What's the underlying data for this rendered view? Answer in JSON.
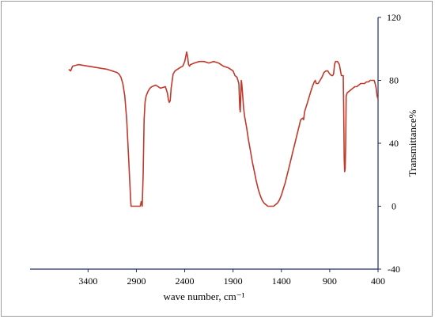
{
  "chart_data": {
    "type": "line",
    "xlabel": "wave number, cm⁻¹",
    "ylabel": "Transmittance%",
    "xlim": [
      4000,
      400
    ],
    "ylim": [
      -40,
      120
    ],
    "x_ticks": [
      3400,
      2900,
      2400,
      1900,
      1400,
      900,
      400
    ],
    "y_ticks": [
      -40,
      0,
      40,
      80,
      120
    ],
    "grid": false,
    "colors": {
      "line": "#c0392b",
      "axis": "#1f2d6b"
    },
    "series": [
      {
        "x": [
          3600,
          3580,
          3560,
          3500,
          3400,
          3300,
          3200,
          3150,
          3100,
          3080,
          3060,
          3040,
          3020,
          3000,
          2980,
          2960,
          2955,
          2950,
          2940,
          2920,
          2900,
          2880,
          2860,
          2850,
          2840,
          2830,
          2820,
          2810,
          2800,
          2780,
          2760,
          2740,
          2700,
          2650,
          2600,
          2580,
          2570,
          2560,
          2550,
          2540,
          2520,
          2500,
          2450,
          2420,
          2400,
          2390,
          2380,
          2370,
          2360,
          2350,
          2340,
          2300,
          2250,
          2200,
          2150,
          2100,
          2050,
          2000,
          1950,
          1900,
          1880,
          1860,
          1840,
          1830,
          1825,
          1820,
          1815,
          1810,
          1805,
          1800,
          1790,
          1780,
          1760,
          1740,
          1720,
          1700,
          1680,
          1660,
          1640,
          1620,
          1600,
          1580,
          1560,
          1540,
          1520,
          1500,
          1480,
          1460,
          1440,
          1420,
          1400,
          1380,
          1360,
          1340,
          1320,
          1300,
          1280,
          1260,
          1240,
          1220,
          1200,
          1180,
          1170,
          1160,
          1150,
          1140,
          1120,
          1100,
          1080,
          1060,
          1050,
          1040,
          1020,
          1000,
          980,
          960,
          940,
          920,
          900,
          880,
          870,
          860,
          850,
          840,
          820,
          800,
          780,
          760,
          755,
          750,
          745,
          740,
          735,
          730,
          720,
          700,
          680,
          660,
          640,
          620,
          600,
          580,
          560,
          540,
          520,
          500,
          480,
          460,
          440,
          430,
          420,
          410,
          400
        ],
        "y": [
          87,
          86,
          89,
          90,
          89,
          88,
          87,
          86,
          85,
          84,
          82,
          78,
          70,
          55,
          30,
          5,
          0,
          0,
          0,
          0,
          0,
          0,
          0,
          3,
          0,
          20,
          55,
          66,
          70,
          73,
          75,
          76,
          77,
          75,
          76,
          72,
          68,
          66,
          67,
          75,
          84,
          86,
          88,
          89,
          92,
          95,
          98,
          95,
          90,
          89,
          90,
          91,
          92,
          92,
          91,
          92,
          91,
          89,
          88,
          86,
          83,
          82,
          78,
          62,
          60,
          70,
          80,
          78,
          74,
          70,
          62,
          57,
          50,
          42,
          35,
          28,
          22,
          16,
          11,
          7,
          4,
          2,
          1,
          0,
          0,
          0,
          0,
          1,
          2,
          4,
          7,
          11,
          15,
          20,
          25,
          30,
          35,
          40,
          45,
          50,
          55,
          56,
          55,
          60,
          62,
          64,
          68,
          72,
          76,
          79,
          80,
          78,
          78,
          80,
          82,
          85,
          86,
          86,
          84,
          83,
          83,
          84,
          90,
          92,
          92,
          90,
          83,
          83,
          60,
          30,
          22,
          24,
          40,
          70,
          72,
          73,
          74,
          75,
          76,
          76,
          77,
          78,
          78,
          78,
          79,
          79,
          80,
          80,
          80,
          78,
          75,
          70,
          68
        ]
      }
    ]
  }
}
